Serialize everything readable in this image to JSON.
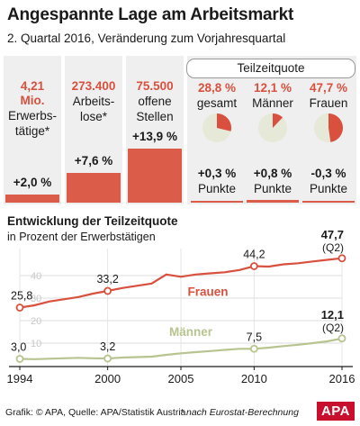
{
  "header": {
    "title": "Angespannte Lage am Arbeitsmarkt",
    "subtitle": "2. Quartal 2016, Veränderung zum Vorjahresquartal"
  },
  "stats": [
    {
      "value_line1": "4,21",
      "value_line2": "Mio.",
      "label_line1": "Erwerbs-",
      "label_line2": "tätige*",
      "change": "+2,0 %",
      "change_pct": 2.0
    },
    {
      "value_line1": "273.400",
      "label_line1": "Arbeits-",
      "label_line2": "lose*",
      "change": "+7,6 %",
      "change_pct": 7.6
    },
    {
      "value_line1": "75.500",
      "label_line1": "offene",
      "label_line2": "Stellen",
      "change": "+13,9 %",
      "change_pct": 13.9
    }
  ],
  "teilzeit": {
    "header": "Teilzeitquote",
    "items": [
      {
        "value": "28,8 %",
        "label": "gesamt",
        "pct": 28.8,
        "change_line1": "+0,3 %",
        "change_line2": "Punkte",
        "change_pts": 0.3
      },
      {
        "value": "12,1 %",
        "label": "Männer",
        "pct": 12.1,
        "change_line1": "+0,8 %",
        "change_line2": "Punkte",
        "change_pts": 0.8
      },
      {
        "value": "47,7 %",
        "label": "Frauen",
        "pct": 47.7,
        "change_line1": "-0,3 %",
        "change_line2": "Punkte",
        "change_pts": -0.3
      }
    ]
  },
  "colors": {
    "accent": "#d9503e",
    "bar": "#dc5c4a",
    "frauen": "#d9503e",
    "maenner": "#b7c48f",
    "panel": "#efefef",
    "pie_bg": "#e6e8d8"
  },
  "chart_data": {
    "type": "line",
    "title": "Entwicklung der Teilzeitquote",
    "subtitle": "in Prozent der Erwerbstätigen",
    "x_ticks": [
      "1994",
      "2000",
      "2005",
      "2010",
      "2016"
    ],
    "y_ticks": [
      "10",
      "20",
      "30",
      "40"
    ],
    "xlim": [
      1994,
      2016
    ],
    "ylim": [
      0,
      52
    ],
    "grid": true,
    "series": [
      {
        "name": "Frauen",
        "color": "#d9503e",
        "x": [
          1994,
          1995,
          1996,
          1997,
          1998,
          1999,
          2000,
          2001,
          2002,
          2003,
          2004,
          2005,
          2006,
          2007,
          2008,
          2009,
          2010,
          2011,
          2012,
          2013,
          2014,
          2015,
          2016
        ],
        "values": [
          25.8,
          26.8,
          28.5,
          29.5,
          30.5,
          32.0,
          33.2,
          34.5,
          35.5,
          36.5,
          40.5,
          39.5,
          40.5,
          41.0,
          41.5,
          42.5,
          44.2,
          44.0,
          45.0,
          45.5,
          46.3,
          47.0,
          47.7
        ],
        "labeled_points": [
          {
            "x": 1994,
            "label": "25,8"
          },
          {
            "x": 2000,
            "label": "33,2"
          },
          {
            "x": 2010,
            "label": "44,2"
          }
        ],
        "end_label": "47,7",
        "end_sub": "(Q2)"
      },
      {
        "name": "Männer",
        "color": "#b7c48f",
        "x": [
          1994,
          1995,
          1996,
          1997,
          1998,
          1999,
          2000,
          2001,
          2002,
          2003,
          2004,
          2005,
          2006,
          2007,
          2008,
          2009,
          2010,
          2011,
          2012,
          2013,
          2014,
          2015,
          2016
        ],
        "values": [
          3.0,
          2.9,
          3.1,
          3.3,
          3.5,
          3.3,
          3.2,
          3.6,
          3.8,
          4.0,
          4.8,
          5.5,
          6.0,
          6.5,
          7.0,
          7.5,
          7.5,
          8.0,
          8.7,
          9.3,
          10.0,
          10.8,
          12.1
        ],
        "labeled_points": [
          {
            "x": 1994,
            "label": "3,0"
          },
          {
            "x": 2000,
            "label": "3,2"
          },
          {
            "x": 2010,
            "label": "7,5"
          }
        ],
        "end_label": "12,1",
        "end_sub": "(Q2)"
      }
    ]
  },
  "footer": {
    "credit": "Grafik: © APA, Quelle: APA/Statistik Austria",
    "note": "* nach Eurostat-Berechnung",
    "logo": "APA"
  }
}
